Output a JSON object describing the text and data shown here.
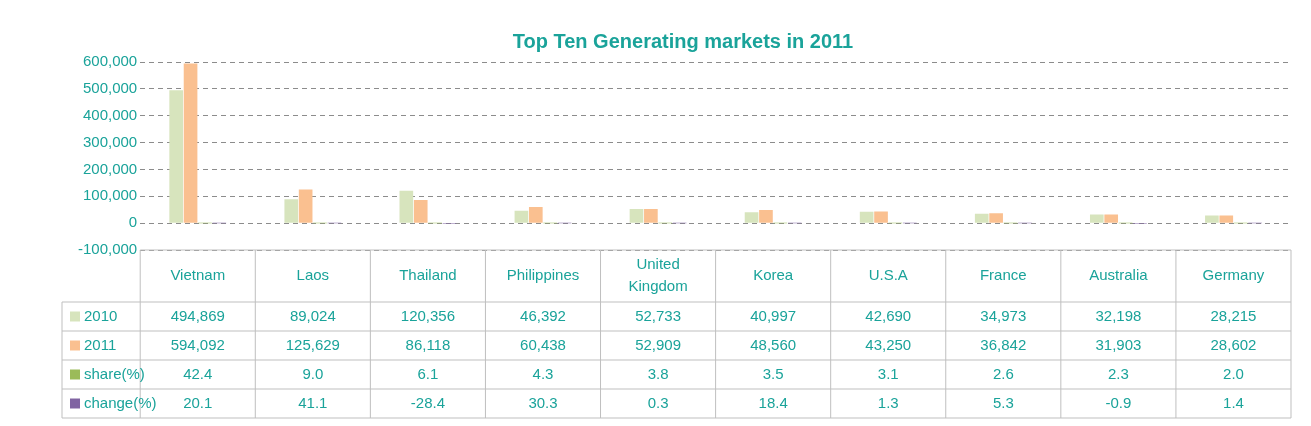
{
  "chart_data": {
    "type": "bar",
    "title": "Top Ten Generating markets in 2011",
    "categories": [
      "Vietnam",
      "Laos",
      "Thailand",
      "Philippines",
      "United Kingdom",
      "Korea",
      "U.S.A",
      "France",
      "Australia",
      "Germany"
    ],
    "series": [
      {
        "name": "2010",
        "color": "#d7e4bd",
        "values": [
          494869,
          89024,
          120356,
          46392,
          52733,
          40997,
          42690,
          34973,
          32198,
          28215
        ],
        "value_labels": [
          "494,869",
          "89,024",
          "120,356",
          "46,392",
          "52,733",
          "40,997",
          "42,690",
          "34,973",
          "32,198",
          "28,215"
        ]
      },
      {
        "name": "2011",
        "color": "#fac090",
        "values": [
          594092,
          125629,
          86118,
          60438,
          52909,
          48560,
          43250,
          36842,
          31903,
          28602
        ],
        "value_labels": [
          "594,092",
          "125,629",
          "86,118",
          "60,438",
          "52,909",
          "48,560",
          "43,250",
          "36,842",
          "31,903",
          "28,602"
        ]
      },
      {
        "name": "share(%)",
        "color": "#9bbb59",
        "values": [
          42.4,
          9.0,
          6.1,
          4.3,
          3.8,
          3.5,
          3.1,
          2.6,
          2.3,
          2.0
        ],
        "value_labels": [
          "42.4",
          "9.0",
          "6.1",
          "4.3",
          "3.8",
          "3.5",
          "3.1",
          "2.6",
          "2.3",
          "2.0"
        ]
      },
      {
        "name": "change(%)",
        "color": "#8064a2",
        "values": [
          20.1,
          41.1,
          -28.4,
          30.3,
          0.3,
          18.4,
          1.3,
          5.3,
          -0.9,
          1.4
        ],
        "value_labels": [
          "20.1",
          "41.1",
          "-28.4",
          "30.3",
          "0.3",
          "18.4",
          "1.3",
          "5.3",
          "-0.9",
          "1.4"
        ]
      }
    ],
    "ylim": [
      -100000,
      600000
    ],
    "yticks": [
      {
        "value": -100000,
        "label": "-100,000"
      },
      0,
      {
        "value": 100000,
        "label": "100,000"
      },
      {
        "value": 200000,
        "label": "200,000"
      },
      {
        "value": 300000,
        "label": "300,000"
      },
      {
        "value": 400000,
        "label": "400,000"
      },
      {
        "value": 500000,
        "label": "500,000"
      },
      {
        "value": 600000,
        "label": "600,000"
      }
    ],
    "grid": "y",
    "legend": "bottom left"
  }
}
